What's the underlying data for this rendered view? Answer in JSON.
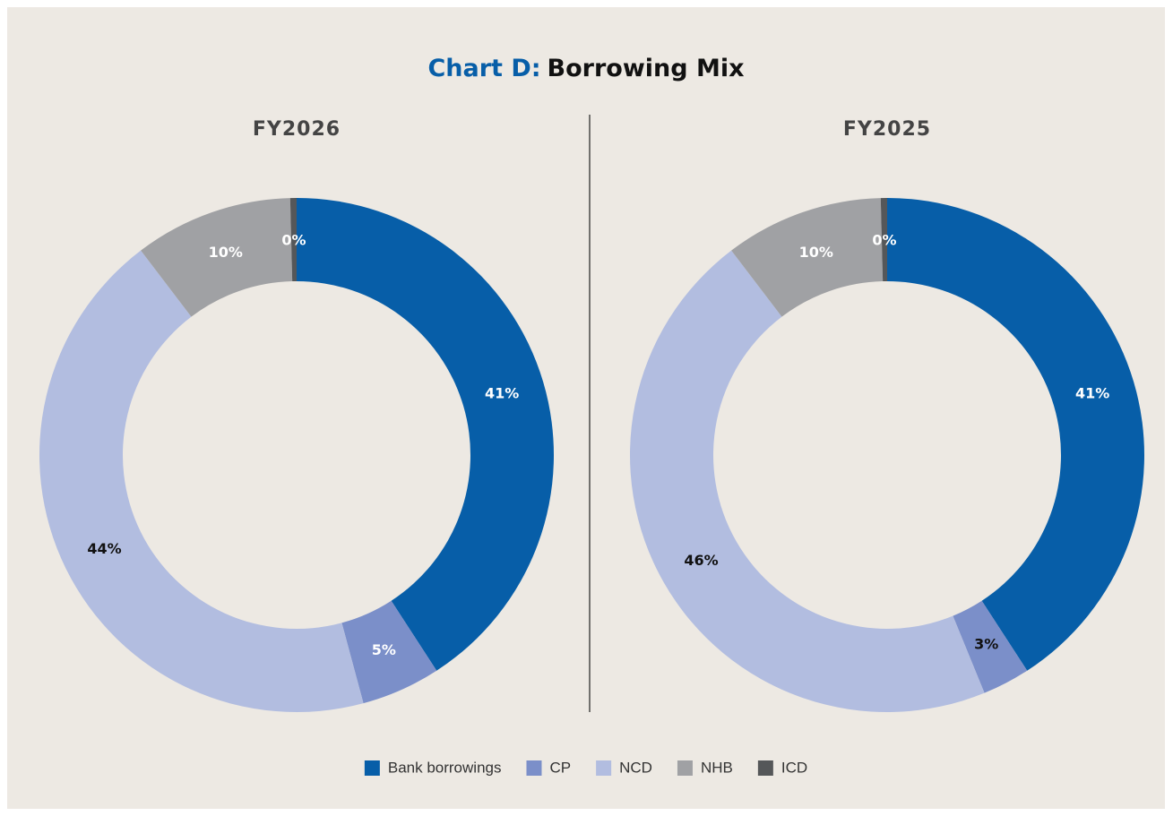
{
  "title": {
    "prefix": "Chart D:",
    "text": "Borrowing Mix"
  },
  "chart_data": [
    {
      "type": "donut",
      "title": "FY2026",
      "categories": [
        "Bank borrowings",
        "CP",
        "NCD",
        "NHB",
        "ICD"
      ],
      "values": [
        41,
        5,
        44,
        10,
        0.4
      ],
      "value_labels": [
        "41%",
        "5%",
        "44%",
        "10%",
        "0%"
      ],
      "colors": [
        "#075ea8",
        "#7b8fc9",
        "#b2bde0",
        "#a0a1a4",
        "#555759"
      ],
      "label_colors": [
        "#ffffff",
        "#ffffff",
        "#111111",
        "#ffffff",
        "#ffffff"
      ]
    },
    {
      "type": "donut",
      "title": "FY2025",
      "categories": [
        "Bank borrowings",
        "CP",
        "NCD",
        "NHB",
        "ICD"
      ],
      "values": [
        41,
        3,
        46,
        10,
        0.4
      ],
      "value_labels": [
        "41%",
        "3%",
        "46%",
        "10%",
        "0%"
      ],
      "colors": [
        "#075ea8",
        "#7b8fc9",
        "#b2bde0",
        "#a0a1a4",
        "#555759"
      ],
      "label_colors": [
        "#ffffff",
        "#111111",
        "#111111",
        "#ffffff",
        "#ffffff"
      ]
    }
  ]
}
